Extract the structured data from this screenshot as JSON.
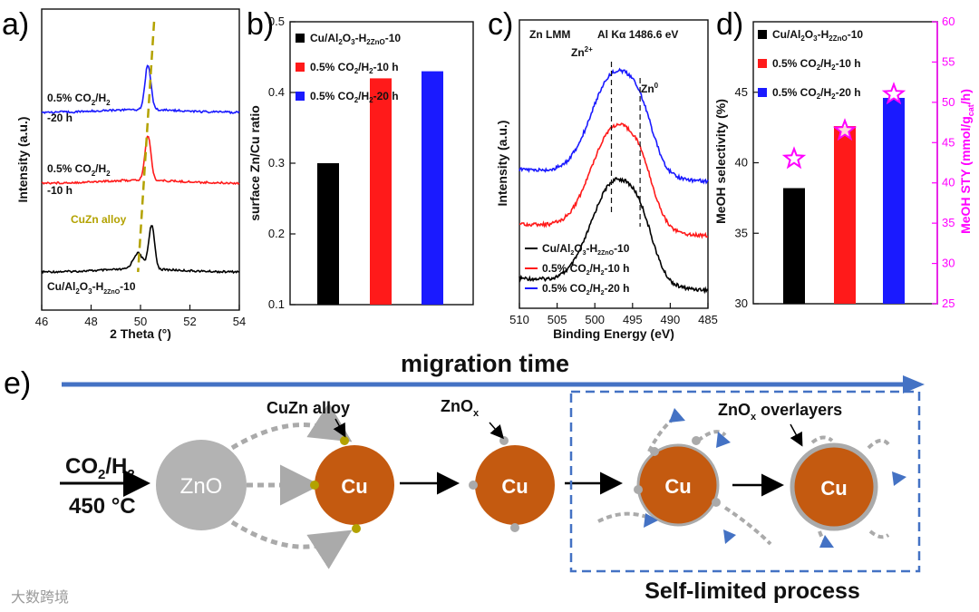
{
  "panel_labels": [
    "a)",
    "b)",
    "c)",
    "d)",
    "e)"
  ],
  "colors": {
    "black": "#000000",
    "red": "#ff1a1a",
    "blue": "#1a1aff",
    "magenta": "#ff00ff",
    "olive": "#b3a200",
    "cu": "#c45a10",
    "zno": "#b3b3b3",
    "arrow_blue": "#4472c4"
  },
  "chart_data": [
    {
      "id": "a",
      "type": "line",
      "xlabel": "2 Theta (°)",
      "ylabel": "Intensity (a.u.)",
      "xlim": [
        46,
        54
      ],
      "x_ticks": [
        "46",
        "48",
        "50",
        "52",
        "54"
      ],
      "series": [
        {
          "name": "Cu/Al2O3-H2ZnO-10",
          "label_main": "Cu/Al",
          "label_sub1": "2",
          "label_mid": "O",
          "label_sub2": "3",
          "label_tail": "-H",
          "label_sub3": "2ZnO",
          "label_end": "-10",
          "peak_position": 50.45,
          "secondary_peak": 49.9,
          "baseline": 0.0,
          "peak_height": 0.6
        },
        {
          "name": "0.5% CO2/H2-10 h",
          "label_line1a": "0.5% CO",
          "label_line1sub": "2",
          "label_line1b": "/H",
          "label_line1sub2": "2",
          "label_line2": "-10 h",
          "peak_position": 50.3,
          "baseline": 1.0,
          "peak_height": 0.62
        },
        {
          "name": "0.5% CO2/H2-20 h",
          "label_line1a": "0.5% CO",
          "label_line1sub": "2",
          "label_line1b": "/H",
          "label_line1sub2": "2",
          "label_line2": "-20 h",
          "peak_position": 50.3,
          "baseline": 2.0,
          "peak_height": 0.62
        }
      ],
      "annotation": "CuZn alloy"
    },
    {
      "id": "b",
      "type": "bar",
      "ylabel": "surface Zn/Cu ratio",
      "ylim": [
        0.1,
        0.5
      ],
      "y_ticks": [
        "0.1",
        "0.2",
        "0.3",
        "0.4",
        "0.5"
      ],
      "values": [
        0.3,
        0.42,
        0.43
      ],
      "legend": [
        {
          "a": "Cu/Al",
          "s1": "2",
          "b": "O",
          "s2": "3",
          "c": "-H",
          "s3": "2ZnO",
          "d": "-10"
        },
        {
          "a": "0.5% CO",
          "s1": "2",
          "b": "/H",
          "s2": "2",
          "c": "-10 h"
        },
        {
          "a": "0.5% CO",
          "s1": "2",
          "b": "/H",
          "s2": "2",
          "c": "-20 h"
        }
      ]
    },
    {
      "id": "c",
      "type": "line",
      "xlabel": "Binding Energy (eV)",
      "ylabel": "Intensity (a.u.)",
      "xlim": [
        510,
        485
      ],
      "x_ticks": [
        "510",
        "505",
        "500",
        "495",
        "490",
        "485"
      ],
      "title_left": "Zn LMM",
      "title_right": "Al Kα 1486.6 eV",
      "marker_zn2": {
        "text": "Zn",
        "sup": "2+",
        "x": 497.8
      },
      "marker_zn0": {
        "text": "Zn",
        "sup": "0",
        "x": 494.0
      },
      "series": [
        {
          "name": "Cu/Al2O3-H2ZnO-10",
          "peak_position": 497.5,
          "baseline": 0.0
        },
        {
          "name": "0.5% CO2/H2-10 h",
          "peak_position": 497.5,
          "baseline": 1.0
        },
        {
          "name": "0.5% CO2/H2-20 h",
          "peak_position": 497.5,
          "baseline": 2.0
        }
      ],
      "legend": [
        {
          "a": "Cu/Al",
          "s1": "2",
          "b": "O",
          "s2": "3",
          "c": "-H",
          "s3": "2ZnO",
          "d": "-10"
        },
        {
          "a": "0.5% CO",
          "s1": "2",
          "b": "/H",
          "s2": "2",
          "c": "-10 h"
        },
        {
          "a": "0.5% CO",
          "s1": "2",
          "b": "/H",
          "s2": "2",
          "c": "-20 h"
        }
      ]
    },
    {
      "id": "d",
      "type": "bar",
      "ylabel": "MeOH selectivity (%)",
      "ylim": [
        30,
        50
      ],
      "y_ticks": [
        "30",
        "35",
        "40",
        "45"
      ],
      "values": [
        38.2,
        42.6,
        44.6
      ],
      "y2label_a": "MeOH STY (mmol/g",
      "y2label_sub": "cat",
      "y2label_b": "/h)",
      "y2lim": [
        25,
        60
      ],
      "y2_ticks": [
        "25",
        "30",
        "35",
        "40",
        "45",
        "50",
        "55",
        "60"
      ],
      "sty_values": [
        43.0,
        46.5,
        51.0
      ],
      "legend": [
        {
          "a": "Cu/Al",
          "s1": "2",
          "b": "O",
          "s2": "3",
          "c": "-H",
          "s3": "2ZnO",
          "d": "-10"
        },
        {
          "a": "0.5% CO",
          "s1": "2",
          "b": "/H",
          "s2": "2",
          "c": "-10 h"
        },
        {
          "a": "0.5% CO",
          "s1": "2",
          "b": "/H",
          "s2": "2",
          "c": "-20 h"
        }
      ]
    }
  ],
  "scheme": {
    "header": "migration time",
    "feed_a": "CO",
    "feed_sub1": "2",
    "feed_b": "/H",
    "feed_sub2": "2",
    "temperature": "450 °C",
    "zno_label": "ZnO",
    "cu_label": "Cu",
    "cuzn_alloy": "CuZn alloy",
    "znox_a": "ZnO",
    "znox_sub": "x",
    "overlayers_a": "ZnO",
    "overlayers_sub": "x",
    "overlayers_b": " overlayers",
    "footer": "Self-limited process"
  },
  "watermark": "大数跨境"
}
